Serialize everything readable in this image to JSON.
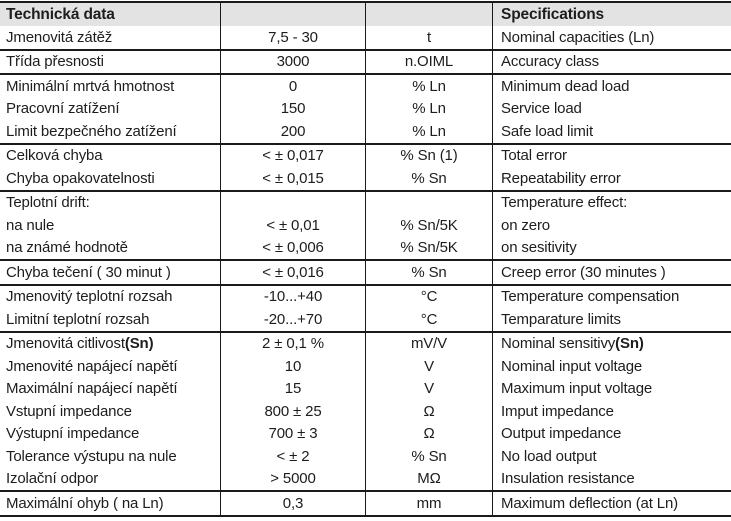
{
  "header": {
    "czech_title": "Technická data",
    "english_title": "Specifications"
  },
  "table": {
    "groups": [
      {
        "rows": [
          {
            "cz": "Jmenovitá zátěž",
            "value": "7,5 - 30",
            "unit": "t",
            "en": "Nominal capacities (Ln)"
          }
        ]
      },
      {
        "rows": [
          {
            "cz": "Třída přesnosti",
            "value": "3000",
            "unit": "n.OIML",
            "en": "Accuracy class"
          }
        ]
      },
      {
        "rows": [
          {
            "cz": "Minimální mrtvá hmotnost",
            "value": "0",
            "unit": "% Ln",
            "en": "Minimum dead load"
          },
          {
            "cz": "Pracovní zatížení",
            "value": "150",
            "unit": "% Ln",
            "en": "Service load"
          },
          {
            "cz": "Limit bezpečného zatížení",
            "value": "200",
            "unit": "% Ln",
            "en": "Safe load limit"
          }
        ]
      },
      {
        "rows": [
          {
            "cz": "Celková chyba",
            "value": "< ± 0,017",
            "unit": "% Sn (1)",
            "en": "Total error"
          },
          {
            "cz": "Chyba opakovatelnosti",
            "value": "< ± 0,015",
            "unit": "% Sn",
            "en": "Repeatability error"
          }
        ]
      },
      {
        "rows": [
          {
            "cz": "Teplotní drift:",
            "value": "",
            "unit": "",
            "en": "Temperature effect:"
          },
          {
            "cz": "na nule",
            "value": "< ± 0,01",
            "unit": "% Sn/5K",
            "en": "on zero"
          },
          {
            "cz": "na známé hodnotě",
            "value": "< ± 0,006",
            "unit": "% Sn/5K",
            "en": "on sesitivity"
          }
        ]
      },
      {
        "rows": [
          {
            "cz": "Chyba tečení ( 30 minut )",
            "value": "< ± 0,016",
            "unit": "% Sn",
            "en": "Creep error (30 minutes )"
          }
        ]
      },
      {
        "rows": [
          {
            "cz": "Jmenovitý teplotní rozsah",
            "value": "-10...+40",
            "unit": "°C",
            "en": "Temperature compensation"
          },
          {
            "cz": "Limitní teplotní rozsah",
            "value": "-20...+70",
            "unit": "°C",
            "en": "Temparature limits"
          }
        ]
      },
      {
        "rows": [
          {
            "cz": "Jmenovitá citlivost ",
            "cz_bold": "(Sn)",
            "value": "2 ± 0,1 %",
            "unit": "mV/V",
            "en": "Nominal sensitivy ",
            "en_bold": "(Sn)"
          },
          {
            "cz": "Jmenovité napájecí napětí",
            "value": "10",
            "unit": "V",
            "en": "Nominal input voltage"
          },
          {
            "cz": "Maximální napájecí napětí",
            "value": "15",
            "unit": "V",
            "en": "Maximum input voltage"
          },
          {
            "cz": "Vstupní impedance",
            "value": "800 ± 25",
            "unit": "Ω",
            "en": "Imput impedance"
          },
          {
            "cz": "Výstupní impedance",
            "value": "700 ± 3",
            "unit": "Ω",
            "en": "Output impedance"
          },
          {
            "cz": "Tolerance výstupu na nule",
            "value": "< ± 2",
            "unit": "% Sn",
            "en": "No load output"
          },
          {
            "cz": "Izolační odpor",
            "value": "> 5000",
            "unit": "MΩ",
            "en": "Insulation resistance"
          }
        ]
      },
      {
        "rows": [
          {
            "cz": "Maximální ohyb ( na Ln)",
            "value": "0,3",
            "unit": "mm",
            "en": "Maximum deflection (at Ln)"
          }
        ]
      }
    ]
  },
  "colors": {
    "header_background": "#e3e3e3",
    "border": "#1a1a1a",
    "text": "#1d1d1d"
  }
}
